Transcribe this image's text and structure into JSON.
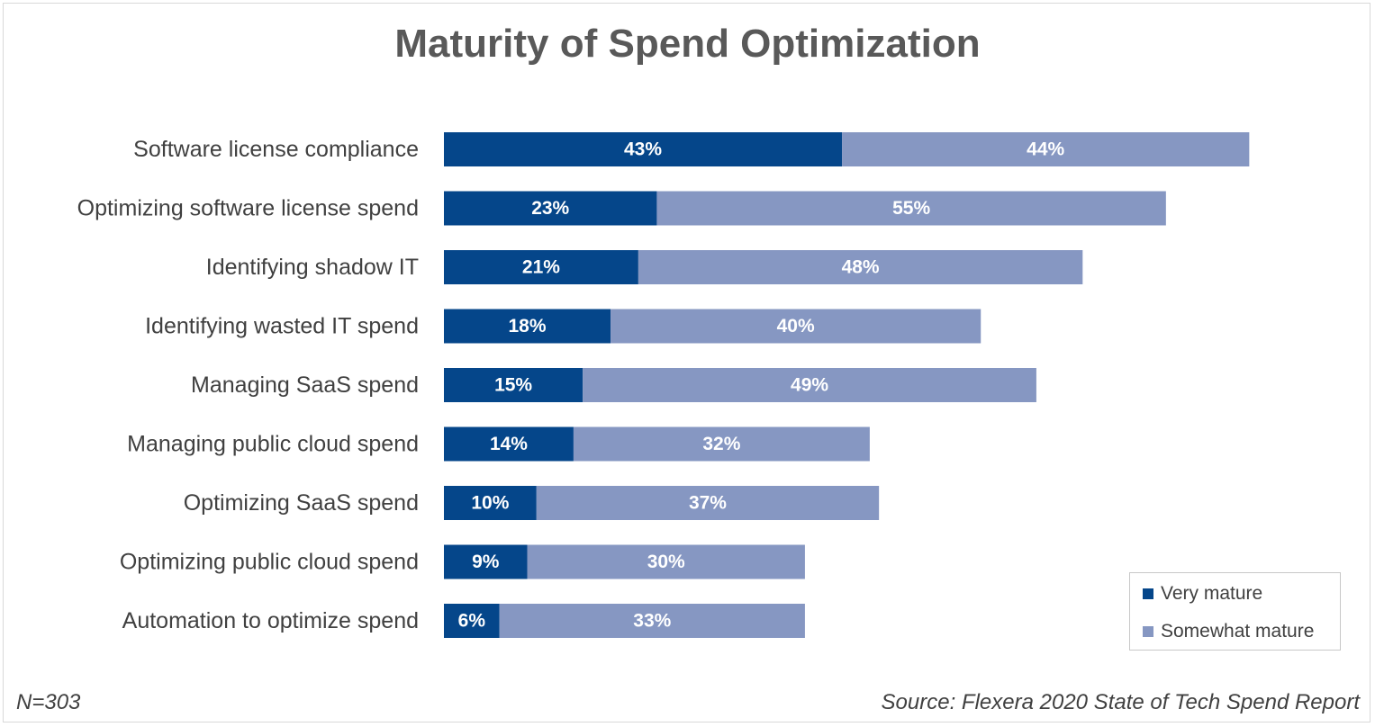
{
  "chart_data": {
    "type": "bar",
    "orientation": "horizontal",
    "stacked": true,
    "title": "Maturity of Spend Optimization",
    "categories": [
      "Software license compliance",
      "Optimizing software license spend",
      "Identifying shadow IT",
      "Identifying wasted IT spend",
      "Managing SaaS spend",
      "Managing public cloud spend",
      "Optimizing SaaS spend",
      "Optimizing public cloud spend",
      "Automation to optimize spend"
    ],
    "series": [
      {
        "name": "Very mature",
        "color": "#05468a",
        "values": [
          43,
          23,
          21,
          18,
          15,
          14,
          10,
          9,
          6
        ]
      },
      {
        "name": "Somewhat mature",
        "color": "#8697c2",
        "values": [
          44,
          55,
          48,
          40,
          49,
          32,
          37,
          30,
          33
        ]
      }
    ],
    "value_suffix": "%",
    "legend_position": "bottom-right"
  },
  "footer": {
    "sample": "N=303",
    "source": "Source: Flexera 2020 State of Tech Spend Report"
  }
}
